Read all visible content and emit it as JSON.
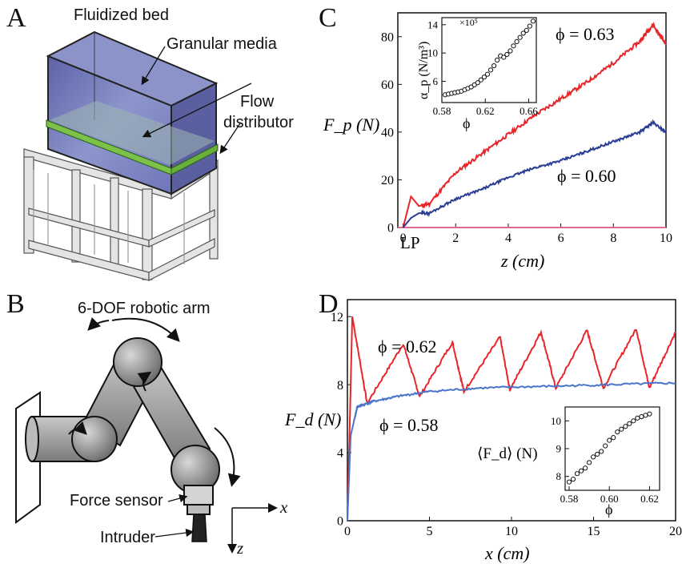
{
  "panels": {
    "a": {
      "letter": "A",
      "labels": {
        "bed": "Fluidized bed",
        "media": "Granular media",
        "flow1": "Flow",
        "flow2": "distributor"
      }
    },
    "b": {
      "letter": "B",
      "labels": {
        "arm": "6-DOF robotic arm",
        "sensor": "Force sensor",
        "intruder": "Intruder",
        "axis_x": "x",
        "axis_z": "z"
      }
    },
    "c": {
      "letter": "C"
    },
    "d": {
      "letter": "D"
    }
  },
  "chart_data": [
    {
      "id": "C-main",
      "type": "line",
      "xlabel": "z (cm)",
      "ylabel": "F_p (N)",
      "xlim": [
        -0.2,
        10
      ],
      "ylim": [
        0,
        90
      ],
      "xticks": [
        "0",
        "2",
        "4",
        "6",
        "8",
        "10"
      ],
      "yticks": [
        "0",
        "20",
        "40",
        "60",
        "80"
      ],
      "annotation": "LP",
      "colors": {
        "phi063": "#e8262a",
        "phi060": "#2b3d94"
      },
      "series": [
        {
          "name": "ϕ = 0.63",
          "x": [
            0,
            0.3,
            0.6,
            1,
            2,
            3,
            4,
            5,
            6,
            7,
            8,
            9,
            9.5,
            10
          ],
          "values": [
            0,
            13,
            9,
            10,
            23,
            31,
            39,
            47,
            54,
            61,
            69,
            78,
            85,
            77
          ]
        },
        {
          "name": "ϕ = 0.60",
          "x": [
            0,
            0.3,
            0.6,
            1,
            2,
            3,
            4,
            5,
            6,
            7,
            8,
            9,
            9.5,
            10
          ],
          "values": [
            0,
            4,
            6,
            6,
            12,
            16,
            21,
            25,
            28,
            32,
            36,
            40,
            44,
            40
          ]
        }
      ]
    },
    {
      "id": "C-inset",
      "type": "scatter",
      "xlabel": "ϕ",
      "ylabel": "α_p (N/m³)",
      "exponent": "×10⁵",
      "xlim": [
        0.58,
        0.667
      ],
      "ylim": [
        3,
        15
      ],
      "xticks": [
        "0.58",
        "0.62",
        "0.66"
      ],
      "yticks": [
        "6",
        "10",
        "14"
      ],
      "x": [
        0.583,
        0.586,
        0.589,
        0.592,
        0.595,
        0.598,
        0.601,
        0.604,
        0.607,
        0.61,
        0.613,
        0.616,
        0.619,
        0.622,
        0.625,
        0.628,
        0.631,
        0.634,
        0.637,
        0.64,
        0.643,
        0.646,
        0.649,
        0.652,
        0.655,
        0.658,
        0.661,
        0.664
      ],
      "values": [
        4.1,
        4.2,
        4.3,
        4.4,
        4.5,
        4.6,
        4.8,
        5.0,
        5.2,
        5.5,
        5.8,
        6.2,
        6.6,
        7.0,
        7.6,
        8.2,
        9.0,
        9.6,
        9.4,
        9.8,
        10.3,
        11.0,
        11.6,
        12.2,
        12.8,
        13.2,
        13.8,
        14.5
      ]
    },
    {
      "id": "D-main",
      "type": "line",
      "xlabel": "x (cm)",
      "ylabel": "F_d (N)",
      "xlim": [
        0,
        20
      ],
      "ylim": [
        0,
        13
      ],
      "xticks": [
        "0",
        "5",
        "10",
        "15",
        "20"
      ],
      "yticks": [
        "0",
        "4",
        "8",
        "12"
      ],
      "colors": {
        "phi062": "#e8262a",
        "phi058": "#4a74c9"
      },
      "series": [
        {
          "name": "ϕ = 0.62",
          "x": [
            0,
            0.3,
            1.2,
            3.4,
            4.4,
            6.4,
            7.1,
            9.3,
            9.9,
            11.8,
            12.7,
            14.6,
            15.6,
            17.6,
            18.4,
            20
          ],
          "values": [
            0,
            12,
            6.9,
            10.4,
            7.3,
            10.5,
            7.6,
            10.8,
            7.7,
            11.1,
            7.8,
            11.2,
            7.8,
            11.3,
            7.8,
            11.1
          ]
        },
        {
          "name": "ϕ = 0.58",
          "x": [
            0,
            0.2,
            0.6,
            1.5,
            3,
            5,
            8,
            12,
            16,
            20
          ],
          "values": [
            0,
            5,
            6.7,
            7.0,
            7.3,
            7.6,
            7.8,
            7.9,
            8.0,
            8.1
          ]
        }
      ]
    },
    {
      "id": "D-inset",
      "type": "scatter",
      "xlabel": "ϕ",
      "ylabel": "⟨F_d⟩ (N)",
      "xlim": [
        0.578,
        0.625
      ],
      "ylim": [
        7.5,
        10.5
      ],
      "xticks": [
        "0.58",
        "0.60",
        "0.62"
      ],
      "yticks": [
        "8",
        "9",
        "10"
      ],
      "x": [
        0.58,
        0.582,
        0.584,
        0.586,
        0.588,
        0.59,
        0.592,
        0.594,
        0.596,
        0.598,
        0.6,
        0.602,
        0.604,
        0.606,
        0.608,
        0.61,
        0.612,
        0.614,
        0.616,
        0.618,
        0.62
      ],
      "values": [
        7.8,
        7.9,
        8.1,
        8.2,
        8.3,
        8.5,
        8.7,
        8.8,
        8.9,
        9.1,
        9.3,
        9.4,
        9.6,
        9.7,
        9.8,
        9.9,
        10.0,
        10.1,
        10.15,
        10.2,
        10.25
      ]
    }
  ]
}
